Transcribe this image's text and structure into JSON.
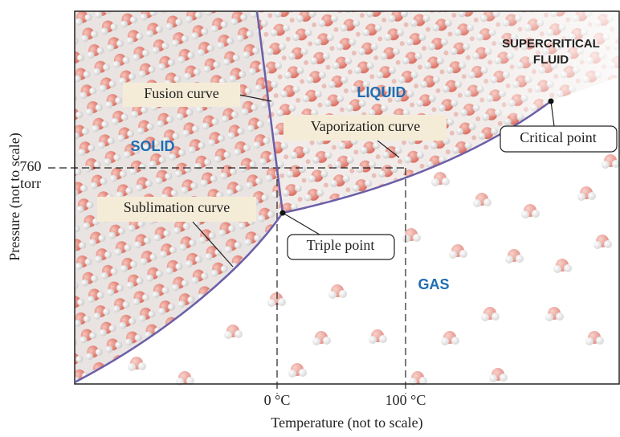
{
  "regions": {
    "solid": "SOLID",
    "liquid": "LIQUID",
    "gas": "GAS",
    "supercritical_line1": "SUPERCRITICAL",
    "supercritical_line2": "FLUID"
  },
  "curves": {
    "fusion": "Fusion curve",
    "vaporization": "Vaporization curve",
    "sublimation": "Sublimation curve"
  },
  "points": {
    "critical": "Critical point",
    "triple": "Triple point"
  },
  "axes": {
    "y_label": "Pressure (not to scale)",
    "x_label": "Temperature (not to scale)",
    "y_tick_value": "760",
    "y_tick_unit": "torr",
    "x_tick_0": "0 °C",
    "x_tick_1": "100 °C"
  }
}
